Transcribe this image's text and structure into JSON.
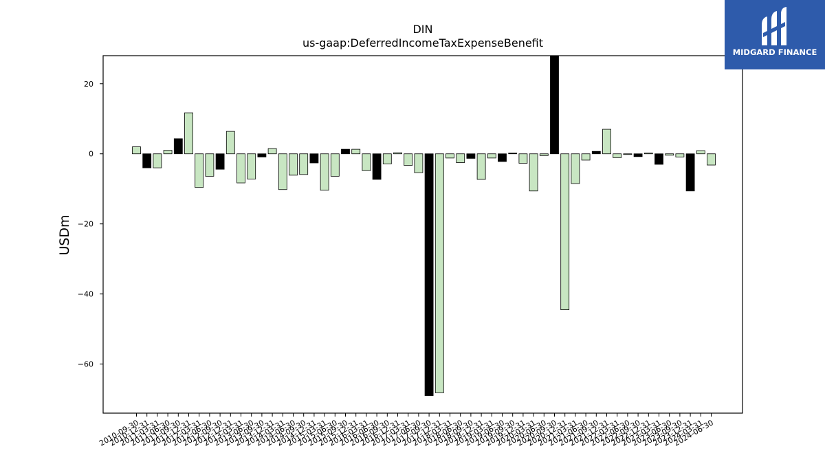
{
  "chart_data": {
    "type": "bar",
    "title": "DIN",
    "subtitle": "us-gaap:DeferredIncomeTaxExpenseBenefit",
    "ylabel": "USDm",
    "xlabel": "",
    "ylim": [
      -74,
      28
    ],
    "yticks": [
      20,
      0,
      -20,
      -40,
      -60
    ],
    "grid": false,
    "colors": {
      "light": "#c8e6c2",
      "dark": "#000000",
      "edge": "#000000"
    },
    "categories": [
      "2010-09-30",
      "2010-12-31",
      "2011-03-31",
      "2011-06-30",
      "2011-09-30",
      "2011-12-31",
      "2012-03-31",
      "2012-06-30",
      "2012-09-30",
      "2012-12-31",
      "2013-03-31",
      "2013-06-30",
      "2013-09-30",
      "2013-12-31",
      "2014-03-31",
      "2014-06-30",
      "2014-09-30",
      "2014-12-31",
      "2015-03-31",
      "2015-06-30",
      "2015-09-30",
      "2015-12-31",
      "2016-03-31",
      "2016-06-30",
      "2016-09-30",
      "2016-12-31",
      "2017-03-31",
      "2017-06-30",
      "2017-09-30",
      "2017-12-31",
      "2018-03-31",
      "2018-06-30",
      "2018-09-30",
      "2018-12-31",
      "2019-03-31",
      "2019-06-30",
      "2019-09-30",
      "2019-12-31",
      "2020-03-31",
      "2020-06-30",
      "2020-09-30",
      "2020-12-31",
      "2021-03-31",
      "2021-06-30",
      "2021-09-30",
      "2021-12-31",
      "2022-03-31",
      "2022-06-30",
      "2022-09-30",
      "2022-12-31",
      "2023-03-31",
      "2023-06-30",
      "2023-09-30",
      "2023-12-31",
      "2024-03-31",
      "2024-06-30"
    ],
    "values": [
      2.0,
      -4.0,
      -4.0,
      1.0,
      4.3,
      11.7,
      -9.6,
      -6.4,
      -4.4,
      6.4,
      -8.3,
      -7.2,
      -0.9,
      1.5,
      -10.2,
      -6.1,
      -5.9,
      -2.6,
      -10.4,
      -6.4,
      1.3,
      1.3,
      -4.8,
      -7.3,
      -2.9,
      0.3,
      -3.3,
      -5.4,
      -69.0,
      -68.2,
      -1.2,
      -2.5,
      -1.3,
      -7.3,
      -1.2,
      -2.2,
      0.2,
      -2.7,
      -10.6,
      -0.5,
      28.0,
      -44.5,
      -8.5,
      -1.8,
      0.7,
      7.0,
      -1.1,
      -0.2,
      -0.8,
      0.2,
      -3.0,
      -0.4,
      -0.9,
      -10.6,
      0.9,
      -3.2
    ],
    "highlighted": [
      "2010-12-31",
      "2011-09-30",
      "2012-09-30",
      "2013-09-30",
      "2014-12-31",
      "2015-09-30",
      "2016-06-30",
      "2017-09-30",
      "2018-09-30",
      "2019-06-30",
      "2019-09-30",
      "2020-09-30",
      "2021-09-30",
      "2022-09-30",
      "2023-03-31",
      "2023-12-31"
    ]
  },
  "logo": {
    "text": "MIDGARD FINANCE",
    "icon": "midgard-logo-icon"
  }
}
